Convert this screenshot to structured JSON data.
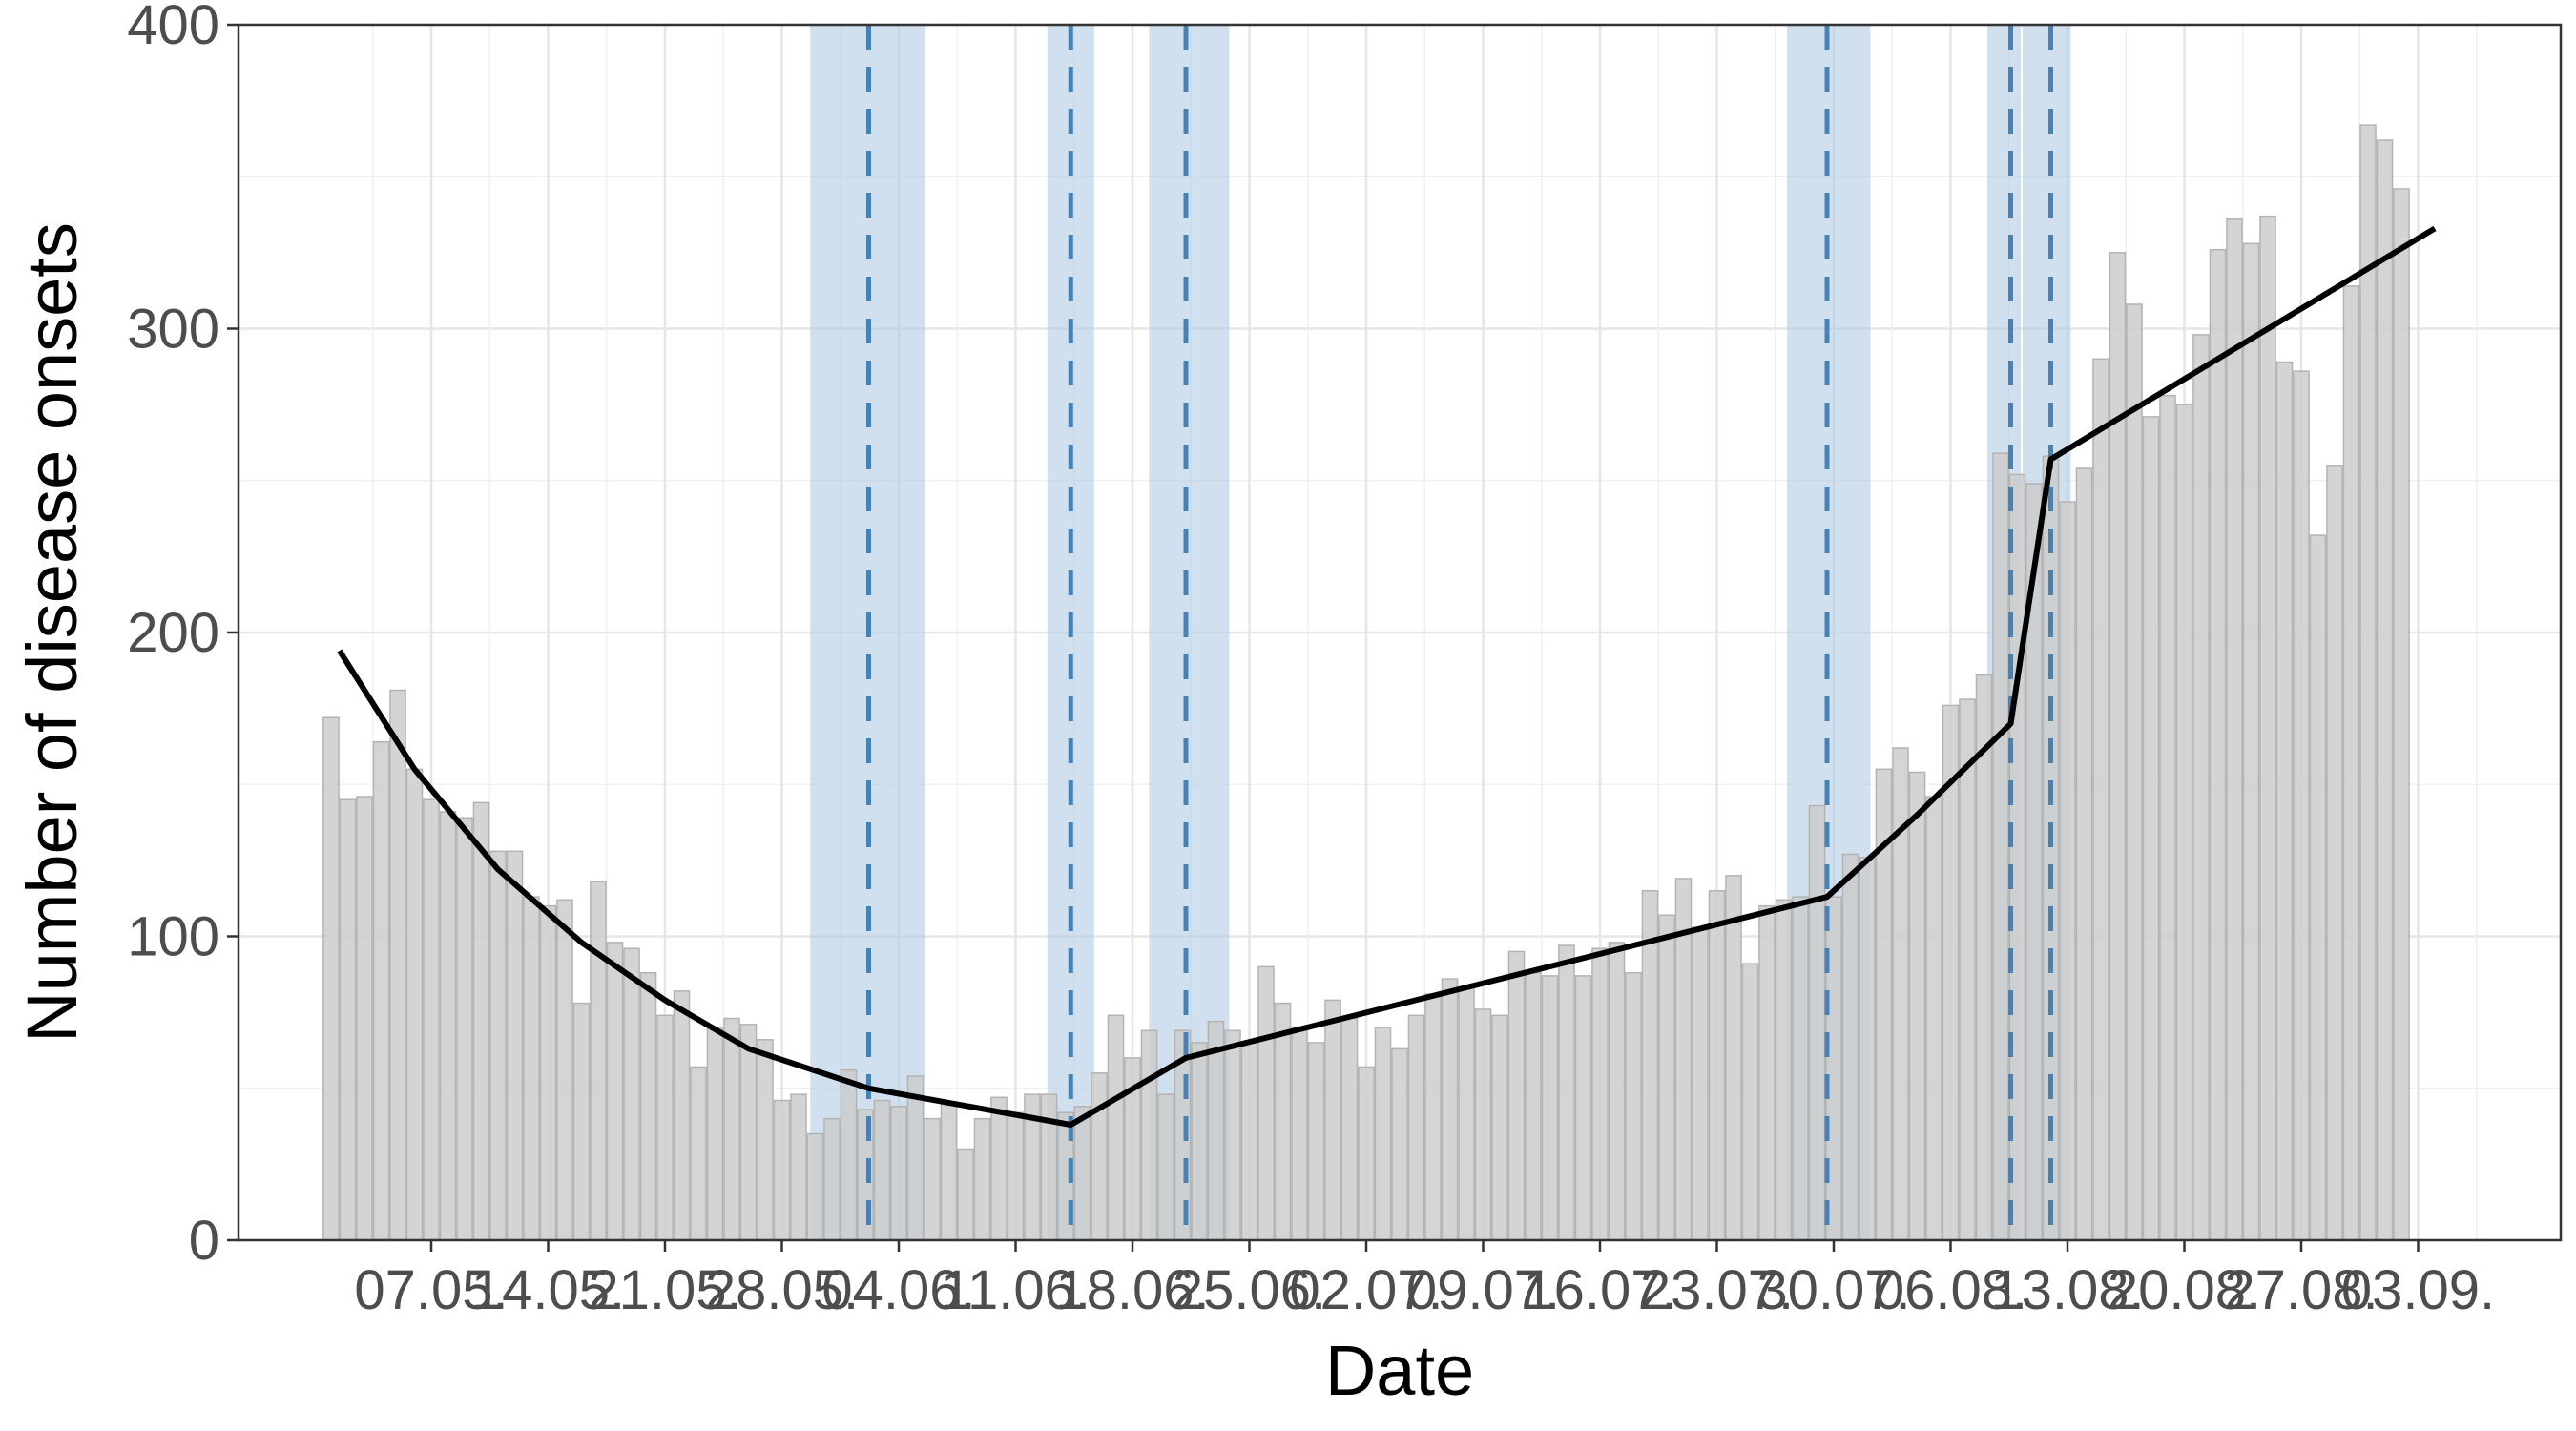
{
  "chart_data": {
    "type": "bar",
    "title": "",
    "xlabel": "Date",
    "ylabel": "Number of disease onsets",
    "ylim": [
      0,
      400
    ],
    "yticks": [
      0,
      100,
      200,
      300,
      400
    ],
    "grid": true,
    "x_tick_labels": [
      "07.05.",
      "14.05.",
      "21.05.",
      "28.05.",
      "04.06.",
      "11.06.",
      "18.06.",
      "25.06.",
      "02.07.",
      "09.07.",
      "16.07.",
      "23.07.",
      "30.07.",
      "06.08.",
      "13.08.",
      "20.08.",
      "27.08.",
      "03.09."
    ],
    "bar_color": "#cccccc",
    "bar_border_color": "#b3b3b3",
    "band_color": "#b3cce4",
    "breakpoint_line_color": "#4682b4",
    "trend_line_color": "#000000",
    "x_tick_days": [
      7,
      14,
      21,
      28,
      35,
      42,
      49,
      56,
      63,
      70,
      77,
      84,
      91,
      98,
      105,
      112,
      119,
      126
    ],
    "bars": [
      172,
      145,
      146,
      164,
      181,
      155,
      145,
      141,
      139,
      144,
      128,
      128,
      113,
      110,
      112,
      78,
      118,
      98,
      96,
      88,
      74,
      82,
      57,
      70,
      73,
      71,
      66,
      46,
      48,
      35,
      40,
      56,
      43,
      46,
      44,
      54,
      40,
      45,
      30,
      40,
      47,
      42,
      48,
      48,
      42,
      44,
      55,
      74,
      60,
      69,
      48,
      69,
      65,
      72,
      69,
      65,
      90,
      78,
      70,
      65,
      79,
      73,
      57,
      70,
      63,
      74,
      81,
      86,
      83,
      76,
      74,
      95,
      88,
      87,
      97,
      87,
      96,
      98,
      88,
      115,
      107,
      119,
      103,
      115,
      120,
      91,
      110,
      112,
      113,
      143,
      113,
      127,
      126,
      155,
      162,
      154,
      146,
      176,
      178,
      186,
      259,
      252,
      249,
      258,
      243,
      254,
      290,
      325,
      308,
      271,
      278,
      275,
      298,
      326,
      336,
      328,
      337,
      289,
      286,
      232,
      255,
      314,
      367,
      362,
      346
    ],
    "breakpoints": [
      {
        "center": 33.2,
        "lower": 29.7,
        "upper": 36.6
      },
      {
        "center": 45.3,
        "lower": 43.9,
        "upper": 46.7
      },
      {
        "center": 52.2,
        "lower": 50.0,
        "upper": 54.8
      },
      {
        "center": 90.6,
        "lower": 88.2,
        "upper": 93.2
      },
      {
        "center": 101.6,
        "lower": 100.2,
        "upper": 102.2
      },
      {
        "center": 104.0,
        "lower": 102.3,
        "upper": 105.2
      }
    ],
    "trend_line": [
      {
        "x": 1.5,
        "y": 194
      },
      {
        "x": 6,
        "y": 155
      },
      {
        "x": 11,
        "y": 122
      },
      {
        "x": 16,
        "y": 98
      },
      {
        "x": 21,
        "y": 79
      },
      {
        "x": 26,
        "y": 63
      },
      {
        "x": 33.2,
        "y": 50
      },
      {
        "x": 45.3,
        "y": 38
      },
      {
        "x": 52.2,
        "y": 60
      },
      {
        "x": 90.6,
        "y": 113
      },
      {
        "x": 96,
        "y": 140
      },
      {
        "x": 101.6,
        "y": 170
      },
      {
        "x": 104.0,
        "y": 257
      },
      {
        "x": 127,
        "y": 333
      }
    ]
  }
}
